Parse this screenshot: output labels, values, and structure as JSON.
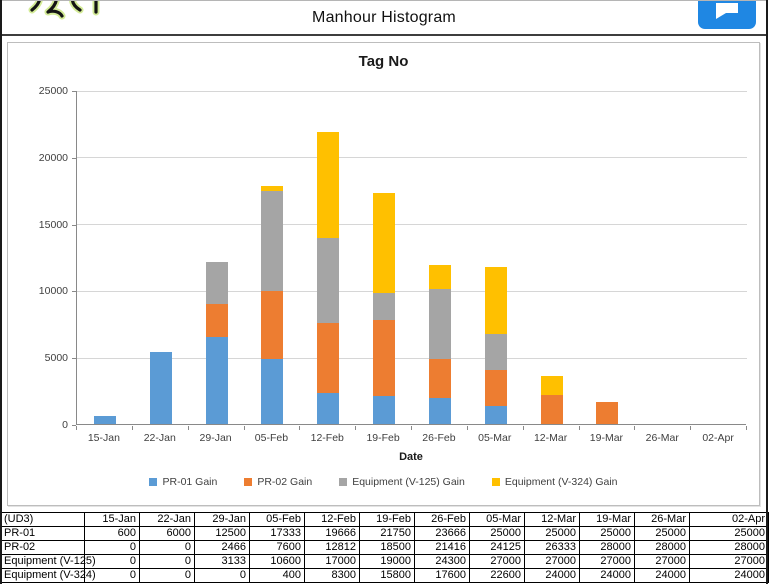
{
  "header": {
    "title": "Manhour Histogram",
    "action_button_icon": "speech-bubble-icon"
  },
  "chart_data": {
    "type": "bar",
    "stacked": true,
    "title": "Tag No",
    "xlabel": "Date",
    "ylabel": "",
    "ylim": [
      0,
      25000
    ],
    "y_ticks": [
      0,
      5000,
      10000,
      15000,
      20000,
      25000
    ],
    "grid": true,
    "legend_position": "bottom",
    "categories": [
      "15-Jan",
      "22-Jan",
      "29-Jan",
      "05-Feb",
      "12-Feb",
      "19-Feb",
      "26-Feb",
      "05-Mar",
      "12-Mar",
      "19-Mar",
      "26-Mar",
      "02-Apr"
    ],
    "series": [
      {
        "name": "PR-01 Gain",
        "color": "#5B9BD5",
        "values": [
          600,
          5400,
          6500,
          4833,
          2333,
          2084,
          1916,
          1334,
          0,
          0,
          0,
          0
        ]
      },
      {
        "name": "PR-02 Gain",
        "color": "#ED7D31",
        "values": [
          0,
          0,
          2466,
          5134,
          5212,
          5688,
          2916,
          2709,
          2208,
          1667,
          0,
          0
        ]
      },
      {
        "name": "Equipment (V-125) Gain",
        "color": "#A5A5A5",
        "values": [
          0,
          0,
          3133,
          7467,
          6400,
          2000,
          5300,
          2700,
          0,
          0,
          0,
          0
        ]
      },
      {
        "name": "Equipment (V-324) Gain",
        "color": "#FFC000",
        "values": [
          0,
          0,
          0,
          400,
          7900,
          7500,
          1800,
          5000,
          1400,
          0,
          0,
          0
        ]
      }
    ]
  },
  "table": {
    "corner_label": "(UD3)",
    "columns": [
      "15-Jan",
      "22-Jan",
      "29-Jan",
      "05-Feb",
      "12-Feb",
      "19-Feb",
      "26-Feb",
      "05-Mar",
      "12-Mar",
      "19-Mar",
      "26-Mar",
      "02-Apr"
    ],
    "rows": [
      {
        "label": "PR-01",
        "values": [
          600,
          6000,
          12500,
          17333,
          19666,
          21750,
          23666,
          25000,
          25000,
          25000,
          25000,
          25000
        ]
      },
      {
        "label": "PR-02",
        "values": [
          0,
          0,
          2466,
          7600,
          12812,
          18500,
          21416,
          24125,
          26333,
          28000,
          28000,
          28000
        ]
      },
      {
        "label": "Equipment (V-125)",
        "values": [
          0,
          0,
          3133,
          10600,
          17000,
          19000,
          24300,
          27000,
          27000,
          27000,
          27000,
          27000
        ]
      },
      {
        "label": "Equipment (V-324)",
        "values": [
          0,
          0,
          0,
          400,
          8300,
          15800,
          17600,
          22600,
          24000,
          24000,
          24000,
          24000
        ]
      }
    ]
  },
  "colors": {
    "series_blue": "#5B9BD5",
    "series_orange": "#ED7D31",
    "series_gray": "#A5A5A5",
    "series_yellow": "#FFC000",
    "action_button": "#1F87E3",
    "gridline": "#D6D6D6",
    "axis": "#898989"
  }
}
